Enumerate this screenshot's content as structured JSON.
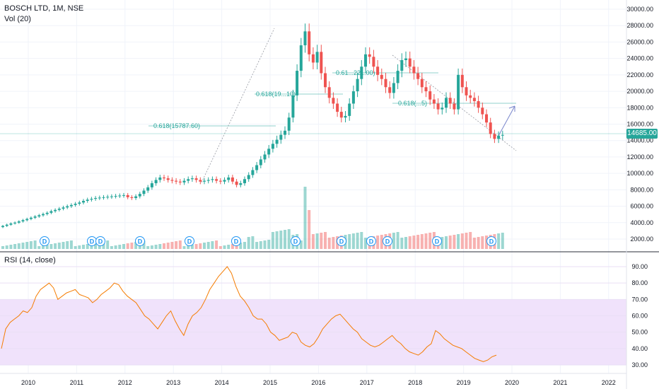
{
  "header": {
    "symbol": "BOSCH LTD, 1M, NSE",
    "volume_label": "Vol (20)",
    "rsi_label": "RSI (14, close)",
    "last_price": "14685.00"
  },
  "fib_labels": [
    "0.618(15787.60)",
    "0.618(19...10)",
    "0.61...22...00)",
    "0.618(...5)"
  ],
  "dividend_marker": "D",
  "colors": {
    "up": "#26a69a",
    "down": "#ef5350",
    "rsi": "#f57c00",
    "rsi_band": "#f0e2fb",
    "grid": "#f0f3fa"
  },
  "chart_data": [
    {
      "type": "candlestick",
      "title": "BOSCH LTD, 1M, NSE",
      "x_ticks": [
        "2010",
        "2011",
        "2012",
        "2013",
        "2014",
        "2015",
        "2016",
        "2017",
        "2018",
        "2019",
        "2020",
        "2021",
        "2022"
      ],
      "y_ticks": [
        "2000.00",
        "4000.00",
        "6000.00",
        "8000.00",
        "10000.00",
        "12000.00",
        "14000.00",
        "16000.00",
        "18000.00",
        "20000.00",
        "22000.00",
        "24000.00",
        "26000.00",
        "28000.00",
        "30000.00"
      ],
      "ylim": [
        0,
        30000
      ],
      "monthly_close_approx": [
        3600,
        3750,
        3900,
        4000,
        4150,
        4300,
        4450,
        4600,
        4750,
        4900,
        5050,
        5200,
        5400,
        5550,
        5700,
        5850,
        6000,
        6150,
        6300,
        6450,
        6650,
        6800,
        6900,
        7000,
        7050,
        7100,
        7150,
        7200,
        7250,
        7300,
        7350,
        7100,
        7000,
        7200,
        7500,
        7900,
        8300,
        8800,
        9200,
        9500,
        9400,
        9200,
        9100,
        9000,
        8900,
        9100,
        9300,
        9400,
        9200,
        9000,
        9100,
        9200,
        9300,
        9100,
        9000,
        9200,
        9500,
        9000,
        8600,
        8800,
        9300,
        9800,
        10400,
        11000,
        11700,
        12300,
        13000,
        13600,
        14100,
        14700,
        15200,
        16800,
        19500,
        22500,
        25600,
        27300,
        24500,
        23500,
        24800,
        22200,
        20500,
        19200,
        18500,
        17500,
        16800,
        17000,
        18500,
        20000,
        21500,
        23000,
        24500,
        24200,
        23000,
        22000,
        21500,
        20500,
        19800,
        21000,
        22500,
        23800,
        24000,
        23000,
        22200,
        21500,
        20500,
        20000,
        19000,
        18500,
        17800,
        18000,
        19200,
        18500,
        17800,
        22000,
        20500,
        19500,
        19200,
        18800,
        18000,
        17200,
        16200,
        14800,
        14200,
        14600,
        14685
      ]
    },
    {
      "type": "bar",
      "title": "Vol (20)",
      "note": "monthly volume histogram, largest spike near 2015"
    },
    {
      "type": "line",
      "title": "RSI (14, close)",
      "y_ticks": [
        "30.00",
        "40.00",
        "50.00",
        "60.00",
        "70.00",
        "80.00",
        "90.00"
      ],
      "ylim": [
        25,
        95
      ],
      "band": [
        30,
        70
      ],
      "values": [
        40,
        52,
        56,
        58,
        60,
        63,
        62,
        65,
        72,
        76,
        78,
        80,
        77,
        70,
        72,
        74,
        75,
        76,
        73,
        72,
        71,
        68,
        70,
        73,
        75,
        77,
        80,
        79,
        75,
        72,
        70,
        68,
        64,
        60,
        58,
        55,
        52,
        56,
        60,
        63,
        57,
        52,
        48,
        55,
        60,
        62,
        65,
        70,
        76,
        80,
        84,
        87,
        90,
        86,
        78,
        72,
        69,
        65,
        60,
        58,
        58,
        55,
        50,
        48,
        45,
        46,
        47,
        50,
        49,
        44,
        42,
        41,
        43,
        47,
        52,
        55,
        58,
        60,
        61,
        58,
        55,
        52,
        50,
        46,
        44,
        42,
        41,
        42,
        44,
        46,
        48,
        45,
        43,
        40,
        38,
        37,
        36,
        38,
        41,
        43,
        51,
        49,
        46,
        44,
        42,
        41,
        40,
        38,
        36,
        34,
        33,
        32,
        33,
        35,
        36
      ]
    }
  ]
}
